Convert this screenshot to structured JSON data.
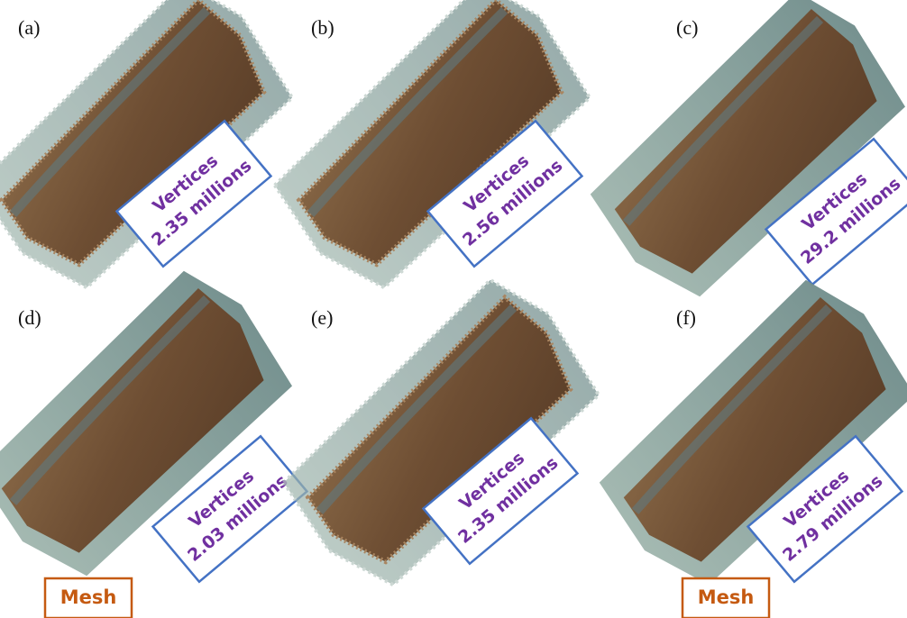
{
  "panels": [
    {
      "label": "(a)",
      "line1": "Vertices",
      "line2": "2.35 millions"
    },
    {
      "label": "(b)",
      "line1": "Vertices",
      "line2": "2.56 millions"
    },
    {
      "label": "(c)",
      "line1": "Vertices",
      "line2": "29.2 millions"
    },
    {
      "label": "(d)",
      "line1": "Vertices",
      "line2": "2.03 millions",
      "tag": "Mesh"
    },
    {
      "label": "(e)",
      "line1": "Vertices",
      "line2": "2.35 millions"
    },
    {
      "label": "(f)",
      "line1": "Vertices",
      "line2": "2.79 millions",
      "tag": "Mesh"
    }
  ]
}
